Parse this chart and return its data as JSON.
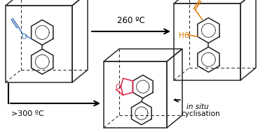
{
  "bg_color": "#ffffff",
  "box_color": "#2a2a2a",
  "arrow_color": "#000000",
  "blue_color": "#4477bb",
  "orange_color": "#dd7700",
  "red_color": "#dd2244",
  "dark_color": "#222222",
  "text_260": "260 ºC",
  "text_300": ">300 ºC",
  "text_insitu": "in situ",
  "text_cyclisation": "cyclisation",
  "figw": 3.78,
  "figh": 1.89,
  "dpi": 100
}
